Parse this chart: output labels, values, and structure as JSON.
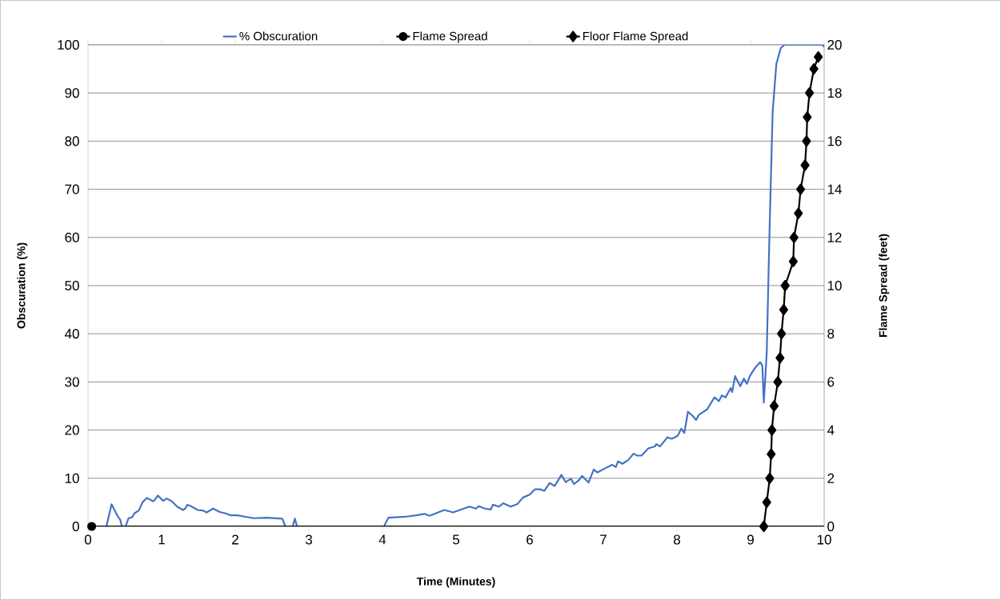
{
  "chart_data": {
    "type": "line",
    "xlabel": "Time (Minutes)",
    "ylabel": "Obscuration (%)",
    "y2label": "Flame Spread (feet)",
    "xlim": [
      0,
      10
    ],
    "xticks": [
      0,
      1,
      2,
      3,
      4,
      5,
      6,
      7,
      8,
      9,
      10
    ],
    "ylim": [
      0,
      100
    ],
    "yticks": [
      0,
      10,
      20,
      30,
      40,
      50,
      60,
      70,
      80,
      90,
      100
    ],
    "y2lim": [
      0,
      20
    ],
    "y2ticks": [
      0,
      2,
      4,
      6,
      8,
      10,
      12,
      14,
      16,
      18,
      20
    ],
    "grid": "y",
    "legend": "top",
    "series": [
      {
        "name": "% Obscuration",
        "color": "#4472c4",
        "marker": "none",
        "x": [
          0.05,
          0.25,
          0.32,
          0.4,
          0.44,
          0.46,
          0.51,
          0.55,
          0.6,
          0.63,
          0.69,
          0.74,
          0.8,
          0.89,
          0.95,
          1.02,
          1.07,
          1.14,
          1.21,
          1.29,
          1.32,
          1.35,
          1.41,
          1.49,
          1.56,
          1.61,
          1.7,
          1.79,
          1.87,
          1.94,
          2.03,
          2.14,
          2.25,
          2.43,
          2.64,
          2.68,
          2.78,
          2.81,
          2.84,
          4.02,
          4.08,
          4.17,
          4.31,
          4.46,
          4.57,
          4.64,
          4.84,
          4.96,
          5.05,
          5.18,
          5.27,
          5.31,
          5.39,
          5.47,
          5.5,
          5.58,
          5.64,
          5.74,
          5.83,
          5.91,
          6.0,
          6.07,
          6.14,
          6.2,
          6.27,
          6.34,
          6.43,
          6.49,
          6.56,
          6.6,
          6.67,
          6.71,
          6.8,
          6.87,
          6.92,
          7.03,
          7.12,
          7.17,
          7.2,
          7.26,
          7.34,
          7.41,
          7.46,
          7.52,
          7.61,
          7.7,
          7.72,
          7.77,
          7.87,
          7.93,
          8.01,
          8.06,
          8.1,
          8.15,
          8.21,
          8.26,
          8.3,
          8.41,
          8.51,
          8.57,
          8.61,
          8.66,
          8.73,
          8.75,
          8.79,
          8.86,
          8.91,
          8.95,
          8.99,
          9.06,
          9.13,
          9.16,
          9.18,
          9.22,
          9.26,
          9.3,
          9.35,
          9.41,
          9.46,
          9.98,
          10.0
        ],
        "values": [
          0,
          0,
          4.6,
          2.2,
          1.3,
          0,
          0,
          1.7,
          1.9,
          2.7,
          3.3,
          5.0,
          5.9,
          5.2,
          6.4,
          5.3,
          5.8,
          5.2,
          4.1,
          3.4,
          3.7,
          4.5,
          4.1,
          3.4,
          3.3,
          2.9,
          3.7,
          3.0,
          2.7,
          2.3,
          2.3,
          2.0,
          1.7,
          1.8,
          1.6,
          0,
          0,
          1.6,
          0,
          0,
          1.8,
          1.9,
          2.0,
          2.3,
          2.6,
          2.2,
          3.4,
          2.9,
          3.4,
          4.1,
          3.7,
          4.2,
          3.7,
          3.5,
          4.5,
          4.1,
          4.8,
          4.1,
          4.6,
          6.0,
          6.6,
          7.7,
          7.7,
          7.4,
          9.0,
          8.4,
          10.7,
          9.2,
          9.9,
          8.8,
          9.6,
          10.5,
          9.1,
          11.8,
          11.2,
          12.1,
          12.8,
          12.3,
          13.5,
          13.0,
          13.8,
          15.1,
          14.7,
          14.7,
          16.2,
          16.6,
          17.1,
          16.6,
          18.5,
          18.2,
          18.8,
          20.3,
          19.4,
          23.8,
          23.0,
          22.1,
          23.2,
          24.3,
          26.8,
          26.0,
          27.2,
          26.8,
          28.7,
          27.9,
          31.2,
          29.1,
          30.7,
          29.6,
          31.2,
          32.9,
          34.1,
          33.4,
          25.7,
          36.2,
          62.8,
          86.0,
          96.0,
          99.3,
          100,
          100,
          99.5
        ]
      },
      {
        "name": "Flame Spread",
        "color": "#000000",
        "marker": "circle",
        "axis": "y2",
        "x": [
          0.05
        ],
        "values": [
          0
        ]
      },
      {
        "name": "Floor Flame Spread",
        "color": "#000000",
        "marker": "diamond",
        "axis": "y2",
        "x": [
          9.18,
          9.22,
          9.26,
          9.28,
          9.29,
          9.32,
          9.37,
          9.4,
          9.42,
          9.45,
          9.47,
          9.58,
          9.59,
          9.65,
          9.68,
          9.74,
          9.76,
          9.77,
          9.8,
          9.86,
          9.92
        ],
        "values": [
          0,
          1,
          2,
          3,
          4,
          5,
          6,
          7,
          8,
          9,
          10,
          11,
          12,
          13,
          14,
          15,
          16,
          17,
          18,
          19,
          19.5
        ]
      }
    ]
  }
}
